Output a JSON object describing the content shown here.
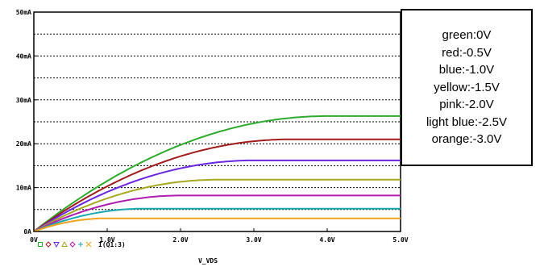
{
  "chart_data": {
    "type": "line",
    "xlabel": "V_VDS",
    "x_tick_labels": [
      "0V",
      "1.0V",
      "2.0V",
      "3.0V",
      "4.0V",
      "5.0V"
    ],
    "y_tick_labels": [
      "0A",
      "10mA",
      "20mA",
      "30mA",
      "40mA",
      "50mA"
    ],
    "xlim": [
      0,
      5
    ],
    "ylim": [
      0,
      50
    ],
    "x_unit": "V",
    "y_unit": "mA",
    "grid": "dashed horizontal lines",
    "series": [
      {
        "name": "green:0V",
        "color": "#2eaa2e",
        "vsat": 4.0,
        "isat": 26.3
      },
      {
        "name": "red:-0.5V",
        "color": "#a01c1c",
        "vsat": 3.5,
        "isat": 21.0
      },
      {
        "name": "blue:-1.0V",
        "color": "#6a25e0",
        "vsat": 3.0,
        "isat": 16.2
      },
      {
        "name": "yellow:-1.5V",
        "color": "#a8a820",
        "vsat": 2.5,
        "isat": 11.8
      },
      {
        "name": "pink:-2.0V",
        "color": "#b01cb0",
        "vsat": 2.0,
        "isat": 8.2
      },
      {
        "name": "light blue:-2.5V",
        "color": "#1aa8b0",
        "vsat": 1.5,
        "isat": 5.2
      },
      {
        "name": "orange:-3.0V",
        "color": "#f0a21c",
        "vsat": 1.0,
        "isat": 3.0
      }
    ],
    "legend": {
      "symbol_colors": [
        "#2eaa2e",
        "#a01c1c",
        "#6a25e0",
        "#a8a820",
        "#b01cb0",
        "#1aa8b0",
        "#f0a21c"
      ],
      "label": "I(Q1:3)"
    }
  }
}
